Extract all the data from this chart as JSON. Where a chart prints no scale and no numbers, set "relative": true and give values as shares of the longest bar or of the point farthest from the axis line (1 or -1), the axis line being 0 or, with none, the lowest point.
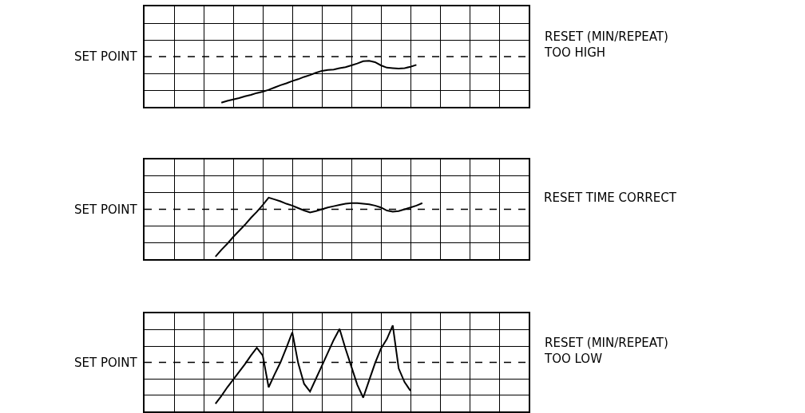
{
  "chart_data": [
    {
      "type": "line",
      "relative": true,
      "grid": true,
      "marker": "none",
      "line_style": "solid",
      "categories": [
        null,
        null,
        null,
        null,
        null,
        null,
        null,
        null,
        null,
        null,
        null,
        null,
        null,
        null,
        null,
        null,
        null,
        null,
        null,
        null,
        null,
        null,
        null,
        null,
        null,
        null,
        null,
        null,
        null,
        null,
        null,
        null,
        null,
        null,
        null
      ],
      "series": [
        {
          "color": "#000000",
          "values": [
            null,
            0.09,
            0.13,
            0.16,
            0.19,
            0.23,
            0.26,
            0.3,
            0.33,
            0.37,
            0.42,
            0.47,
            0.51,
            0.56,
            0.6,
            0.65,
            0.69,
            0.74,
            0.78,
            0.8,
            0.81,
            0.84,
            0.86,
            0.9,
            0.94,
            0.99,
            1,
            0.97,
            0.9,
            0.85,
            0.84,
            0.83,
            0.84,
            0.87,
            0.91
          ]
        }
      ],
      "ref_lines": [
        {
          "axis": "y",
          "value": 1.09,
          "label": "SET POINT",
          "color": "#000000",
          "line_style": "dashed"
        }
      ],
      "annotations": [
        "RESET (MIN/REPEAT)\nTOO HIGH"
      ]
    },
    {
      "type": "line",
      "relative": true,
      "grid": true,
      "marker": "none",
      "line_style": "solid",
      "categories": [
        null,
        null,
        null,
        null,
        null,
        null,
        null,
        null,
        null,
        null,
        null,
        null,
        null,
        null,
        null,
        null,
        null,
        null,
        null,
        null,
        null,
        null,
        null,
        null,
        null,
        null,
        null,
        null,
        null,
        null,
        null,
        null,
        null,
        null,
        null,
        null
      ],
      "series": [
        {
          "color": "#000000",
          "values": [
            0.04,
            0.15,
            0.25,
            0.36,
            0.46,
            0.56,
            0.67,
            0.77,
            0.88,
            1,
            0.97,
            0.94,
            0.9,
            0.87,
            0.83,
            0.79,
            0.76,
            0.78,
            0.81,
            0.84,
            0.86,
            0.88,
            0.9,
            0.91,
            0.91,
            0.9,
            0.89,
            0.87,
            0.84,
            0.79,
            0.77,
            0.78,
            0.81,
            0.84,
            0.87,
            0.91
          ]
        }
      ],
      "ref_lines": [
        {
          "axis": "y",
          "value": 0.81,
          "label": "SET POINT",
          "color": "#000000",
          "line_style": "dashed"
        }
      ],
      "annotations": [
        "RESET TIME CORRECT"
      ]
    },
    {
      "type": "line",
      "relative": true,
      "grid": true,
      "marker": "none",
      "line_style": "solid",
      "categories": [
        null,
        null,
        null,
        null,
        null,
        null,
        null,
        null,
        null,
        null,
        null,
        null,
        null,
        null,
        null,
        null,
        null,
        null,
        null,
        null,
        null,
        null,
        null,
        null,
        null,
        null,
        null,
        null,
        null,
        null,
        null,
        null,
        null,
        null
      ],
      "series": [
        {
          "color": "#000000",
          "values": [
            0.09,
            0.18,
            0.28,
            0.37,
            0.46,
            0.55,
            0.65,
            0.74,
            0.65,
            0.28,
            0.43,
            0.57,
            0.74,
            0.92,
            0.56,
            0.32,
            0.23,
            0.38,
            0.53,
            0.68,
            0.83,
            0.96,
            0.73,
            0.52,
            0.31,
            0.16,
            0.36,
            0.56,
            0.73,
            0.84,
            1,
            0.5,
            0.34,
            0.24
          ]
        }
      ],
      "ref_lines": [
        {
          "axis": "y",
          "value": 0.57,
          "label": "SET POINT",
          "color": "#000000",
          "line_style": "dashed"
        }
      ],
      "annotations": [
        "RESET (MIN/REPEAT)\nTOO LOW"
      ]
    }
  ]
}
